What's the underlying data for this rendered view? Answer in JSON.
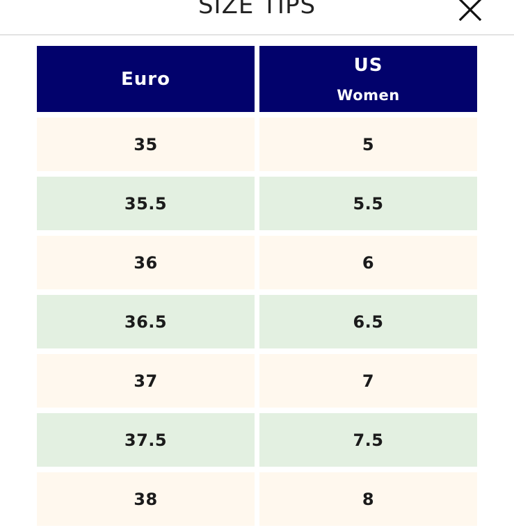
{
  "header": {
    "title": "SIZE TIPS",
    "close_icon": "close-icon"
  },
  "colors": {
    "header_cell_bg": "#02026c",
    "row_odd_bg": "#fff8ee",
    "row_even_bg": "#e3f0e1",
    "header_text": "#ffffff",
    "cell_text": "#1b1b1b"
  },
  "table": {
    "columns": [
      {
        "title": "Euro",
        "subtitle": ""
      },
      {
        "title": "US",
        "subtitle": "Women"
      }
    ],
    "rows": [
      [
        "35",
        "5"
      ],
      [
        "35.5",
        "5.5"
      ],
      [
        "36",
        "6"
      ],
      [
        "36.5",
        "6.5"
      ],
      [
        "37",
        "7"
      ],
      [
        "37.5",
        "7.5"
      ],
      [
        "38",
        "8"
      ]
    ]
  }
}
